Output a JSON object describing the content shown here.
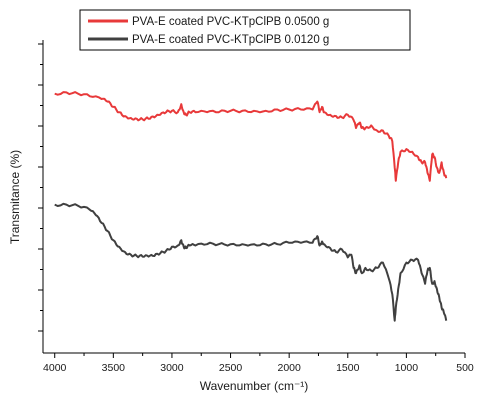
{
  "chart_data": {
    "type": "line",
    "xlabel": "Wavenumber (cm⁻¹)",
    "ylabel": "Transmitance (%)",
    "xlim": [
      4100,
      500
    ],
    "ylim": [
      0,
      100
    ],
    "x_ticks": [
      4000,
      3500,
      3000,
      2500,
      2000,
      1500,
      1000,
      500
    ],
    "y_tick_labels": "none",
    "grid": false,
    "legend_position": "top",
    "series": [
      {
        "name": "PVA-E coated PVC-KTpClPB 0.0500 g",
        "color": "#e8393a",
        "x": [
          4000,
          3900,
          3800,
          3700,
          3600,
          3550,
          3500,
          3450,
          3400,
          3350,
          3300,
          3250,
          3200,
          3150,
          3100,
          3050,
          3000,
          2950,
          2920,
          2900,
          2880,
          2850,
          2800,
          2700,
          2600,
          2500,
          2400,
          2300,
          2200,
          2100,
          2000,
          1900,
          1800,
          1760,
          1740,
          1720,
          1700,
          1650,
          1600,
          1550,
          1500,
          1450,
          1430,
          1400,
          1380,
          1350,
          1300,
          1250,
          1200,
          1150,
          1120,
          1100,
          1090,
          1070,
          1050,
          1000,
          950,
          900,
          870,
          840,
          820,
          800,
          780,
          760,
          740,
          720,
          700,
          680,
          660
        ],
        "values": [
          88,
          88.5,
          88,
          87,
          86,
          85,
          83,
          81,
          79.5,
          78.8,
          78.5,
          78.3,
          78.5,
          79,
          80,
          81,
          81.5,
          81,
          84,
          81,
          80,
          81,
          81,
          81,
          81,
          81.5,
          81.5,
          81.5,
          81.5,
          82,
          82,
          82,
          82,
          85,
          81,
          83,
          81,
          80,
          79.5,
          79,
          80,
          78,
          75,
          77,
          75,
          75,
          76,
          74,
          74,
          72,
          70,
          60,
          55,
          62,
          66,
          67,
          66,
          64,
          62,
          62,
          58,
          55,
          65,
          64,
          60,
          58,
          62,
          58,
          56
        ]
      },
      {
        "name": "PVA-E coated PVC-KTpClPB 0.0120 g",
        "color": "#404040",
        "x": [
          4000,
          3900,
          3800,
          3700,
          3650,
          3600,
          3550,
          3500,
          3450,
          3400,
          3350,
          3300,
          3250,
          3200,
          3150,
          3100,
          3050,
          3000,
          2950,
          2920,
          2900,
          2880,
          2850,
          2800,
          2700,
          2600,
          2500,
          2400,
          2300,
          2200,
          2100,
          2000,
          1900,
          1800,
          1760,
          1740,
          1720,
          1700,
          1650,
          1600,
          1550,
          1500,
          1470,
          1450,
          1430,
          1400,
          1380,
          1350,
          1300,
          1250,
          1200,
          1150,
          1120,
          1100,
          1090,
          1070,
          1050,
          1000,
          950,
          900,
          870,
          840,
          820,
          800,
          780,
          760,
          740,
          720,
          700,
          680,
          660
        ],
        "values": [
          46,
          46,
          45.5,
          44,
          42,
          39,
          36,
          32.5,
          30,
          28,
          27,
          26.5,
          26.3,
          26.3,
          26.5,
          27.5,
          28.5,
          30,
          30.5,
          32.5,
          30,
          29.5,
          30.5,
          30.5,
          31,
          31,
          31,
          31,
          31,
          31,
          31,
          31.5,
          31.5,
          31.5,
          34,
          30.5,
          32,
          31,
          29.5,
          28,
          29,
          26,
          27,
          22,
          20,
          23,
          20,
          22,
          21,
          22,
          24,
          18,
          12,
          2,
          7,
          14,
          20,
          24,
          25,
          25,
          20,
          16,
          21,
          22,
          16,
          17,
          14,
          11,
          7,
          5,
          2
        ]
      }
    ]
  }
}
